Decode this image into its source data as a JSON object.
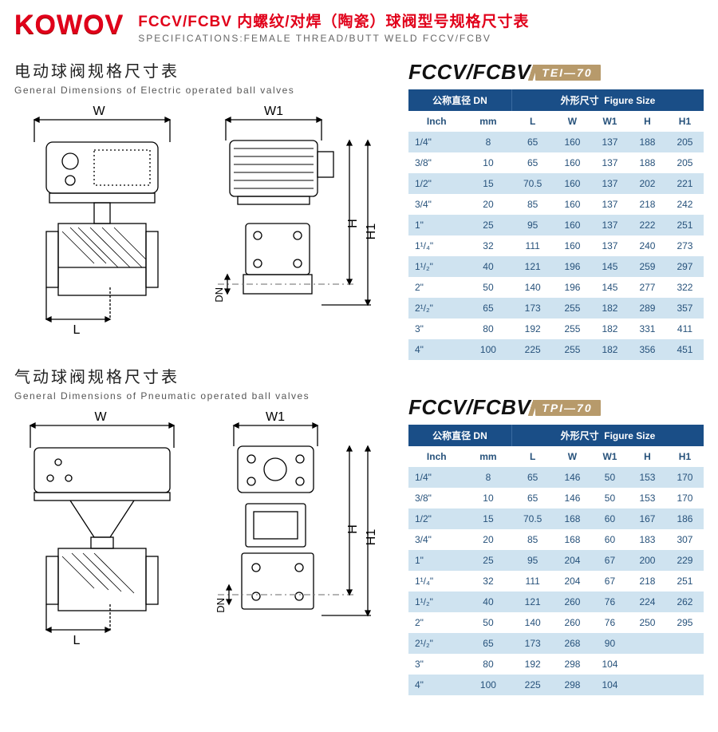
{
  "header": {
    "logo_text": "KOWOV",
    "logo_color": "#e1001a",
    "title_cn": "FCCV/FCBV 内螺纹/对焊（陶瓷）球阀型号规格尺寸表",
    "title_en": "SPECIFICATIONS:FEMALE THREAD/BUTT WELD FCCV/FCBV"
  },
  "section1": {
    "title_cn": "电动球阀规格尺寸表",
    "title_en": "General Dimensions of Electric operated ball valves",
    "dim_labels": {
      "W": "W",
      "W1": "W1",
      "L": "L",
      "H": "H",
      "H1": "H1",
      "DN": "DN"
    }
  },
  "section2": {
    "title_cn": "气动球阀规格尺寸表",
    "title_en": "General Dimensions of Pneumatic operated ball valves",
    "dim_labels": {
      "W": "W",
      "W1": "W1",
      "L": "L",
      "H": "H",
      "H1": "H1",
      "DN": "DN"
    }
  },
  "table1": {
    "model_main": "FCCV/FCBV",
    "model_tag": "TEI—70",
    "header_dn_cn": "公称直径 DN",
    "header_size_cn": "外形尺寸",
    "header_size_en": "Figure Size",
    "columns": [
      "Inch",
      "mm",
      "L",
      "W",
      "W1",
      "H",
      "H1"
    ],
    "colors": {
      "header_bg": "#1a4e87",
      "header_fg": "#ffffff",
      "row_alt_bg": "#cfe3f0",
      "row_bg": "#ffffff",
      "text": "#27527b",
      "tag_bg": "#b79a6b"
    },
    "rows": [
      [
        "1/4\"",
        "8",
        "65",
        "160",
        "137",
        "188",
        "205"
      ],
      [
        "3/8\"",
        "10",
        "65",
        "160",
        "137",
        "188",
        "205"
      ],
      [
        "1/2\"",
        "15",
        "70.5",
        "160",
        "137",
        "202",
        "221"
      ],
      [
        "3/4\"",
        "20",
        "85",
        "160",
        "137",
        "218",
        "242"
      ],
      [
        "1\"",
        "25",
        "95",
        "160",
        "137",
        "222",
        "251"
      ],
      [
        "1¹/₄\"",
        "32",
        "111",
        "160",
        "137",
        "240",
        "273"
      ],
      [
        "1¹/₂\"",
        "40",
        "121",
        "196",
        "145",
        "259",
        "297"
      ],
      [
        "2\"",
        "50",
        "140",
        "196",
        "145",
        "277",
        "322"
      ],
      [
        "2¹/₂\"",
        "65",
        "173",
        "255",
        "182",
        "289",
        "357"
      ],
      [
        "3\"",
        "80",
        "192",
        "255",
        "182",
        "331",
        "411"
      ],
      [
        "4\"",
        "100",
        "225",
        "255",
        "182",
        "356",
        "451"
      ]
    ]
  },
  "table2": {
    "model_main": "FCCV/FCBV",
    "model_tag": "TPI—70",
    "header_dn_cn": "公称直径 DN",
    "header_size_cn": "外形尺寸",
    "header_size_en": "Figure Size",
    "columns": [
      "Inch",
      "mm",
      "L",
      "W",
      "W1",
      "H",
      "H1"
    ],
    "colors": {
      "header_bg": "#1a4e87",
      "header_fg": "#ffffff",
      "row_alt_bg": "#cfe3f0",
      "row_bg": "#ffffff",
      "text": "#27527b",
      "tag_bg": "#b79a6b"
    },
    "rows": [
      [
        "1/4\"",
        "8",
        "65",
        "146",
        "50",
        "153",
        "170"
      ],
      [
        "3/8\"",
        "10",
        "65",
        "146",
        "50",
        "153",
        "170"
      ],
      [
        "1/2\"",
        "15",
        "70.5",
        "168",
        "60",
        "167",
        "186"
      ],
      [
        "3/4\"",
        "20",
        "85",
        "168",
        "60",
        "183",
        "307"
      ],
      [
        "1\"",
        "25",
        "95",
        "204",
        "67",
        "200",
        "229"
      ],
      [
        "1¹/₄\"",
        "32",
        "111",
        "204",
        "67",
        "218",
        "251"
      ],
      [
        "1¹/₂\"",
        "40",
        "121",
        "260",
        "76",
        "224",
        "262"
      ],
      [
        "2\"",
        "50",
        "140",
        "260",
        "76",
        "250",
        "295"
      ],
      [
        "2¹/₂\"",
        "65",
        "173",
        "268",
        "90",
        "",
        ""
      ],
      [
        "3\"",
        "80",
        "192",
        "298",
        "104",
        "",
        ""
      ],
      [
        "4\"",
        "100",
        "225",
        "298",
        "104",
        "",
        ""
      ]
    ]
  },
  "drawing_style": {
    "stroke": "#000000",
    "stroke_width": 1.2,
    "font_size": 14,
    "centerline": "#777777"
  }
}
